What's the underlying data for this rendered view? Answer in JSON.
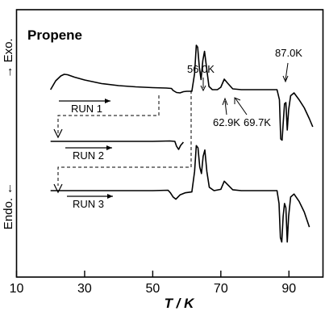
{
  "chart_data": {
    "type": "line",
    "title": "Propene",
    "xlabel": "T / K",
    "ylabel_upper": "→ Exo.",
    "ylabel_lower": "Endo. ←",
    "xlim": [
      10,
      100
    ],
    "xticks": [
      10,
      30,
      50,
      70,
      90
    ],
    "xtick_labels": [
      "10",
      "30",
      "50",
      "70",
      "90"
    ],
    "grid": false,
    "series": [
      {
        "name": "RUN 1",
        "range": [
          20,
          97
        ],
        "points": [
          [
            20,
            0.0
          ],
          [
            21.5,
            0.22
          ],
          [
            23,
            0.34
          ],
          [
            24,
            0.38
          ],
          [
            25,
            0.37
          ],
          [
            27,
            0.31
          ],
          [
            30,
            0.24
          ],
          [
            35,
            0.15
          ],
          [
            40,
            0.1
          ],
          [
            45,
            0.07
          ],
          [
            50,
            0.05
          ],
          [
            54,
            0.04
          ],
          [
            55.5,
            0.03
          ],
          [
            56,
            -0.02
          ],
          [
            57,
            -0.07
          ],
          [
            58,
            -0.08
          ],
          [
            59,
            -0.05
          ],
          [
            60,
            -0.04
          ],
          [
            61.5,
            -0.04
          ],
          [
            62.3,
            0.4
          ],
          [
            62.8,
            1.1
          ],
          [
            63.2,
            1.05
          ],
          [
            63.7,
            0.55
          ],
          [
            64.2,
            0.25
          ],
          [
            64.7,
            0.72
          ],
          [
            65.2,
            0.95
          ],
          [
            65.8,
            0.55
          ],
          [
            66.5,
            0.08
          ],
          [
            67.5,
            0.0
          ],
          [
            69,
            0.0
          ],
          [
            70,
            0.06
          ],
          [
            71,
            0.26
          ],
          [
            72,
            0.16
          ],
          [
            73.5,
            0.02
          ],
          [
            76,
            0.0
          ],
          [
            86.5,
            0.0
          ],
          [
            87.2,
            -0.25
          ],
          [
            87.6,
            -1.22
          ],
          [
            88,
            -1.25
          ],
          [
            88.3,
            -0.85
          ],
          [
            88.7,
            -0.35
          ],
          [
            89.1,
            -0.32
          ],
          [
            89.5,
            -1.0
          ],
          [
            89.9,
            -0.5
          ],
          [
            90.5,
            -0.15
          ],
          [
            91.5,
            -0.08
          ],
          [
            93,
            -0.25
          ],
          [
            94.5,
            -0.45
          ],
          [
            96,
            -0.72
          ],
          [
            97,
            -0.92
          ]
        ]
      },
      {
        "name": "RUN 2",
        "range": [
          20,
          59
        ],
        "points": [
          [
            20,
            0.0
          ],
          [
            50,
            0.0
          ],
          [
            55,
            0.01
          ],
          [
            56.5,
            0.0
          ],
          [
            57,
            -0.12
          ],
          [
            57.6,
            -0.2
          ],
          [
            58.2,
            -0.1
          ],
          [
            59,
            -0.02
          ]
        ]
      },
      {
        "name": "RUN 3",
        "range": [
          20,
          96
        ],
        "points": [
          [
            20,
            0.0
          ],
          [
            50,
            0.0
          ],
          [
            54.5,
            0.01
          ],
          [
            55.2,
            -0.05
          ],
          [
            56,
            -0.15
          ],
          [
            56.8,
            -0.2
          ],
          [
            58,
            -0.1
          ],
          [
            59.5,
            -0.05
          ],
          [
            61.5,
            -0.03
          ],
          [
            62.3,
            0.45
          ],
          [
            62.8,
            1.05
          ],
          [
            63.3,
            1.0
          ],
          [
            63.8,
            0.55
          ],
          [
            64.3,
            0.4
          ],
          [
            64.8,
            0.8
          ],
          [
            65.3,
            0.95
          ],
          [
            65.9,
            0.45
          ],
          [
            66.6,
            0.08
          ],
          [
            68,
            0.0
          ],
          [
            70,
            0.03
          ],
          [
            71,
            0.22
          ],
          [
            72,
            0.14
          ],
          [
            73.5,
            0.02
          ],
          [
            76,
            0.0
          ],
          [
            86.5,
            0.0
          ],
          [
            87.1,
            -0.3
          ],
          [
            87.5,
            -1.1
          ],
          [
            87.9,
            -1.2
          ],
          [
            88.3,
            -0.6
          ],
          [
            88.7,
            -0.3
          ],
          [
            89.1,
            -0.4
          ],
          [
            89.5,
            -1.2
          ],
          [
            89.9,
            -0.6
          ],
          [
            90.5,
            -0.15
          ],
          [
            91.5,
            -0.08
          ],
          [
            93,
            -0.25
          ],
          [
            94.5,
            -0.5
          ],
          [
            96,
            -0.85
          ]
        ]
      }
    ],
    "annotations": [
      "56.0K",
      "62.9K",
      "69.7K",
      "87.0K"
    ]
  }
}
